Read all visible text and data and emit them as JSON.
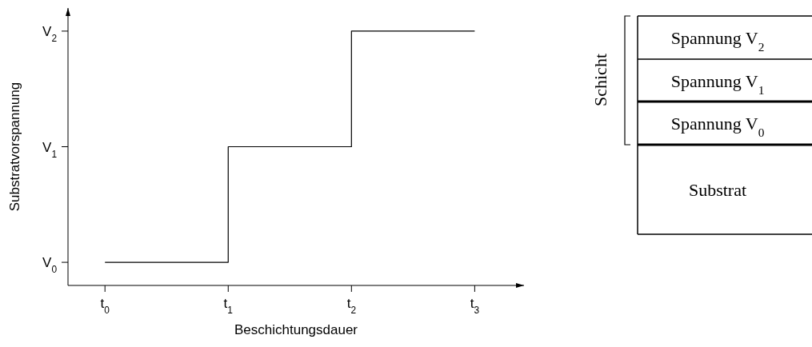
{
  "chart_data": [
    {
      "type": "step",
      "xlabel": "Beschichtungsdauer",
      "ylabel": "Substratvorspannung",
      "x": [
        0,
        1,
        2,
        3
      ],
      "series": [
        {
          "color": "#000000",
          "values": [
            0,
            1,
            2,
            2
          ]
        }
      ],
      "xlim": [
        -0.3,
        3.4
      ],
      "ylim": [
        -0.2,
        2.2
      ],
      "xticks": [
        {
          "value": 0,
          "label": "t$_{0}$"
        },
        {
          "value": 1,
          "label": "t$_{1}$"
        },
        {
          "value": 2,
          "label": "t$_{2}$"
        },
        {
          "value": 3,
          "label": "t$_{3}$"
        }
      ],
      "yticks": [
        {
          "value": 0,
          "label": "V$_{0}$"
        },
        {
          "value": 1,
          "label": "V$_{1}$"
        },
        {
          "value": 2,
          "label": "V$_{2}$"
        }
      ]
    },
    {
      "type": "other",
      "annotations": [
        "Schicht",
        "Spannung V$_{2}$",
        "Spannung V$_{1}$",
        "Spannung V$_{0}$",
        "Substrat"
      ]
    }
  ]
}
